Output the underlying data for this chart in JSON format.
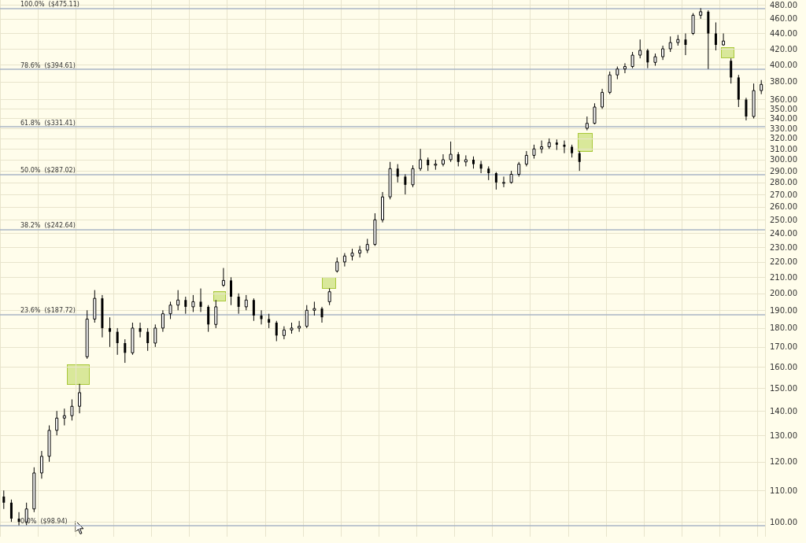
{
  "chart_data": {
    "type": "candlestick",
    "categories": [
      null,
      null,
      null,
      null,
      null,
      null,
      null,
      null,
      null,
      null,
      null,
      null,
      null,
      null,
      null,
      null,
      null,
      null,
      null,
      null,
      null,
      null,
      null,
      null,
      null,
      null,
      null,
      null,
      null,
      null,
      null,
      null,
      null,
      null,
      null,
      null,
      null,
      null,
      null,
      null,
      null,
      null,
      null,
      null,
      null,
      null,
      null,
      null,
      null,
      null,
      null,
      null,
      null,
      null,
      null,
      null,
      null,
      null,
      null,
      null,
      null,
      null,
      null,
      null,
      null,
      null,
      null,
      null,
      null,
      null,
      null,
      null,
      null,
      null,
      null,
      null,
      null,
      null,
      null,
      null,
      null,
      null,
      null,
      null,
      null,
      null,
      null,
      null,
      null,
      null,
      null,
      null,
      null,
      null,
      null,
      null,
      null,
      null,
      null,
      null,
      null
    ],
    "ohlc": [
      [
        108,
        110,
        104,
        106
      ],
      [
        106,
        107,
        100,
        101
      ],
      [
        101,
        103,
        98.94,
        100
      ],
      [
        100,
        106,
        99,
        104
      ],
      [
        104,
        118,
        103,
        116
      ],
      [
        116,
        124,
        114,
        122
      ],
      [
        122,
        134,
        120,
        132
      ],
      [
        132,
        140,
        130,
        137
      ],
      [
        137,
        141,
        134,
        138
      ],
      [
        138,
        145,
        136,
        142
      ],
      [
        142,
        152,
        139,
        148
      ],
      [
        165,
        190,
        164,
        185
      ],
      [
        185,
        202,
        183,
        197
      ],
      [
        197,
        199,
        175,
        180
      ],
      [
        180,
        186,
        170,
        178
      ],
      [
        178,
        180,
        166,
        172
      ],
      [
        172,
        174,
        162,
        167
      ],
      [
        167,
        183,
        166,
        180
      ],
      [
        180,
        183,
        175,
        178
      ],
      [
        178,
        180,
        168,
        172
      ],
      [
        172,
        182,
        170,
        180
      ],
      [
        180,
        190,
        178,
        188
      ],
      [
        188,
        195,
        185,
        193
      ],
      [
        193,
        202,
        190,
        196
      ],
      [
        196,
        198,
        188,
        192
      ],
      [
        192,
        199,
        189,
        195
      ],
      [
        195,
        203,
        189,
        192
      ],
      [
        192,
        193,
        178,
        182
      ],
      [
        182,
        196,
        180,
        192
      ],
      [
        205,
        216,
        204,
        208
      ],
      [
        208,
        210,
        193,
        198
      ],
      [
        198,
        200,
        188,
        192
      ],
      [
        192,
        199,
        190,
        196
      ],
      [
        196,
        197,
        184,
        187
      ],
      [
        187,
        190,
        182,
        185
      ],
      [
        185,
        188,
        180,
        183
      ],
      [
        183,
        184,
        173,
        176
      ],
      [
        176,
        181,
        174,
        179
      ],
      [
        179,
        183,
        177,
        180
      ],
      [
        180,
        184,
        178,
        181
      ],
      [
        181,
        193,
        180,
        190
      ],
      [
        190,
        195,
        187,
        191
      ],
      [
        191,
        192,
        183,
        186
      ],
      [
        195,
        203,
        193,
        201
      ],
      [
        214,
        223,
        213,
        220
      ],
      [
        220,
        226,
        217,
        224
      ],
      [
        224,
        229,
        221,
        226
      ],
      [
        226,
        231,
        223,
        228
      ],
      [
        228,
        236,
        226,
        232
      ],
      [
        232,
        255,
        231,
        250
      ],
      [
        250,
        272,
        248,
        268
      ],
      [
        268,
        298,
        266,
        292
      ],
      [
        292,
        296,
        280,
        285
      ],
      [
        285,
        287,
        270,
        278
      ],
      [
        278,
        295,
        276,
        292
      ],
      [
        292,
        310,
        290,
        300
      ],
      [
        300,
        302,
        290,
        295
      ],
      [
        295,
        300,
        291,
        296
      ],
      [
        296,
        305,
        294,
        300
      ],
      [
        300,
        317,
        298,
        305
      ],
      [
        305,
        307,
        294,
        298
      ],
      [
        298,
        304,
        294,
        300
      ],
      [
        300,
        303,
        292,
        296
      ],
      [
        296,
        299,
        288,
        292
      ],
      [
        292,
        294,
        282,
        288
      ],
      [
        288,
        289,
        274,
        280
      ],
      [
        280,
        285,
        276,
        280
      ],
      [
        280,
        290,
        279,
        287
      ],
      [
        287,
        298,
        285,
        296
      ],
      [
        296,
        308,
        294,
        304
      ],
      [
        304,
        314,
        301,
        310
      ],
      [
        310,
        318,
        306,
        312
      ],
      [
        312,
        320,
        310,
        316
      ],
      [
        316,
        319,
        309,
        314
      ],
      [
        314,
        318,
        306,
        312
      ],
      [
        312,
        314,
        302,
        306
      ],
      [
        306,
        308,
        290,
        298
      ],
      [
        330,
        342,
        328,
        335
      ],
      [
        335,
        356,
        334,
        352
      ],
      [
        352,
        372,
        350,
        368
      ],
      [
        368,
        392,
        366,
        388
      ],
      [
        388,
        398,
        383,
        395
      ],
      [
        395,
        402,
        390,
        398
      ],
      [
        398,
        416,
        396,
        412
      ],
      [
        412,
        432,
        408,
        418
      ],
      [
        418,
        420,
        396,
        403
      ],
      [
        403,
        414,
        399,
        410
      ],
      [
        410,
        424,
        406,
        420
      ],
      [
        420,
        436,
        416,
        428
      ],
      [
        428,
        438,
        424,
        432
      ],
      [
        432,
        440,
        412,
        425
      ],
      [
        440,
        468,
        438,
        465
      ],
      [
        465,
        475.11,
        460,
        470
      ],
      [
        470,
        472,
        395,
        440
      ],
      [
        440,
        455,
        418,
        425
      ],
      [
        425,
        440,
        424,
        430
      ],
      [
        405,
        408,
        378,
        385
      ],
      [
        385,
        388,
        352,
        360
      ],
      [
        360,
        362,
        338,
        342
      ],
      [
        342,
        378,
        340,
        370
      ],
      [
        370,
        382,
        366,
        377
      ]
    ],
    "color": "#000000",
    "log": true,
    "ylim": [
      95.6,
      487
    ],
    "yticks": [
      {
        "value": 100,
        "label": "100.00"
      },
      {
        "value": 110,
        "label": "110.00"
      },
      {
        "value": 120,
        "label": "120.00"
      },
      {
        "value": 130,
        "label": "130.00"
      },
      {
        "value": 140,
        "label": "140.00"
      },
      {
        "value": 150,
        "label": "150.00"
      },
      {
        "value": 160,
        "label": "160.00"
      },
      {
        "value": 170,
        "label": "170.00"
      },
      {
        "value": 180,
        "label": "180.00"
      },
      {
        "value": 190,
        "label": "190.00"
      },
      {
        "value": 200,
        "label": "200.00"
      },
      {
        "value": 210,
        "label": "210.00"
      },
      {
        "value": 220,
        "label": "220.00"
      },
      {
        "value": 230,
        "label": "230.00"
      },
      {
        "value": 240,
        "label": "240.00"
      },
      {
        "value": 250,
        "label": "250.00"
      },
      {
        "value": 260,
        "label": "260.00"
      },
      {
        "value": 270,
        "label": "270.00"
      },
      {
        "value": 280,
        "label": "280.00"
      },
      {
        "value": 290,
        "label": "290.00"
      },
      {
        "value": 300,
        "label": "300.00"
      },
      {
        "value": 310,
        "label": "310.00"
      },
      {
        "value": 320,
        "label": "320.00"
      },
      {
        "value": 330,
        "label": "330.00"
      },
      {
        "value": 340,
        "label": "340.00"
      },
      {
        "value": 350,
        "label": "350.00"
      },
      {
        "value": 360,
        "label": "360.00"
      },
      {
        "value": 380,
        "label": "380.00"
      },
      {
        "value": 400,
        "label": "400.00"
      },
      {
        "value": 420,
        "label": "420.00"
      },
      {
        "value": 440,
        "label": "440.00"
      },
      {
        "value": 460,
        "label": "460.00"
      },
      {
        "value": 480,
        "label": "480.00"
      }
    ],
    "grid": true,
    "ref_lines": [
      {
        "axis": "y",
        "value": 475.11,
        "label": "100.0%  ($475.11)",
        "color": "#aab4c6"
      },
      {
        "axis": "y",
        "value": 394.61,
        "label": "78.6%  ($394.61)",
        "color": "#aab4c6"
      },
      {
        "axis": "y",
        "value": 331.41,
        "label": "61.8%  ($331.41)",
        "color": "#aab4c6"
      },
      {
        "axis": "y",
        "value": 287.02,
        "label": "50.0%  ($287.02)",
        "color": "#aab4c6"
      },
      {
        "axis": "y",
        "value": 242.64,
        "label": "38.2%  ($242.64)",
        "color": "#aab4c6"
      },
      {
        "axis": "y",
        "value": 187.72,
        "label": "23.6%  ($187.72)",
        "color": "#aab4c6"
      },
      {
        "axis": "y",
        "value": 98.94,
        "label": "0.0%  ($98.94)",
        "color": "#aab4c6"
      }
    ]
  }
}
